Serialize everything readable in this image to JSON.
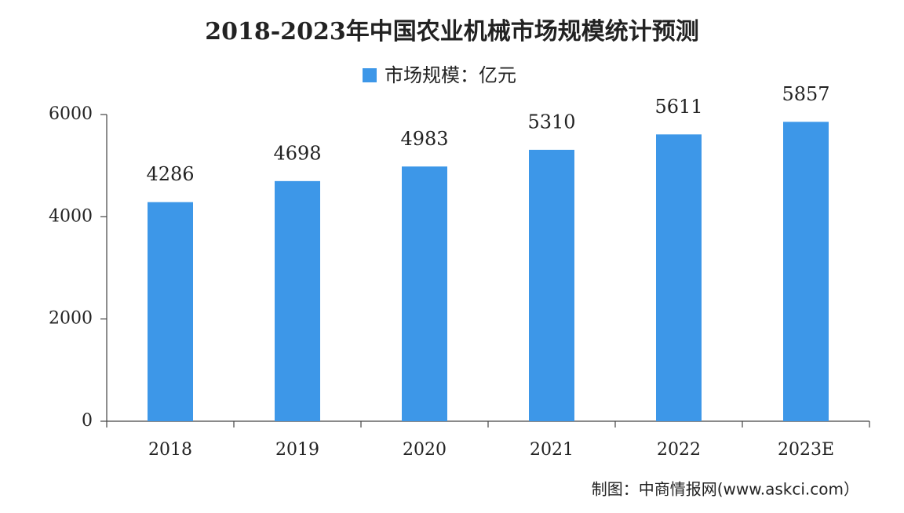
{
  "chart_data": {
    "type": "bar",
    "title": "2018-2023年中国农业机械市场规模统计预测",
    "categories": [
      "2018",
      "2019",
      "2020",
      "2021",
      "2022",
      "2023E"
    ],
    "series": [
      {
        "name": "市场规模：亿元",
        "color": "#3d97e8",
        "values": [
          4286,
          4698,
          4983,
          5310,
          5611,
          5857
        ]
      }
    ],
    "ylim": [
      0,
      6000
    ],
    "yticks": [
      0,
      2000,
      4000,
      6000
    ],
    "grid": false,
    "legend": "top",
    "source": "制图：中商情报网(www.askci.com）"
  }
}
